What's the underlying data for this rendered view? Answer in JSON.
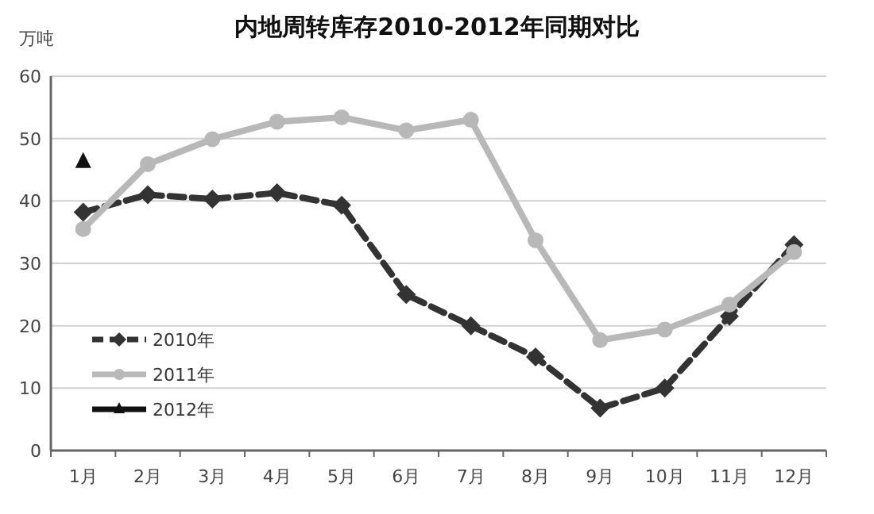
{
  "chart_data": {
    "type": "line",
    "title": "内地周转库存2010-2012年同期对比",
    "ylabel": "万吨",
    "categories": [
      "1月",
      "2月",
      "3月",
      "4月",
      "5月",
      "6月",
      "7月",
      "8月",
      "9月",
      "10月",
      "11月",
      "12月"
    ],
    "series": [
      {
        "name": "2010年",
        "color": "#333333",
        "marker": "diamond",
        "line_style": "dashed",
        "values": [
          38.2,
          41,
          40.3,
          41.3,
          39.3,
          25,
          20,
          15,
          6.8,
          10,
          21.5,
          33
        ]
      },
      {
        "name": "2011年",
        "color": "#b8b8b8",
        "marker": "circle",
        "line_style": "solid",
        "values": [
          35.5,
          45.9,
          49.9,
          52.7,
          53.4,
          51.3,
          53,
          33.7,
          17.7,
          19.4,
          23.4,
          31.8
        ]
      },
      {
        "name": "2012年",
        "color": "#111111",
        "marker": "triangle",
        "line_style": "solid",
        "values": [
          46.3,
          null,
          null,
          null,
          null,
          null,
          null,
          null,
          null,
          null,
          null,
          null
        ]
      }
    ],
    "ylim": [
      0,
      60
    ],
    "yticks": [
      0,
      10,
      20,
      30,
      40,
      50,
      60
    ],
    "grid": "y",
    "legend": "bottom left"
  }
}
